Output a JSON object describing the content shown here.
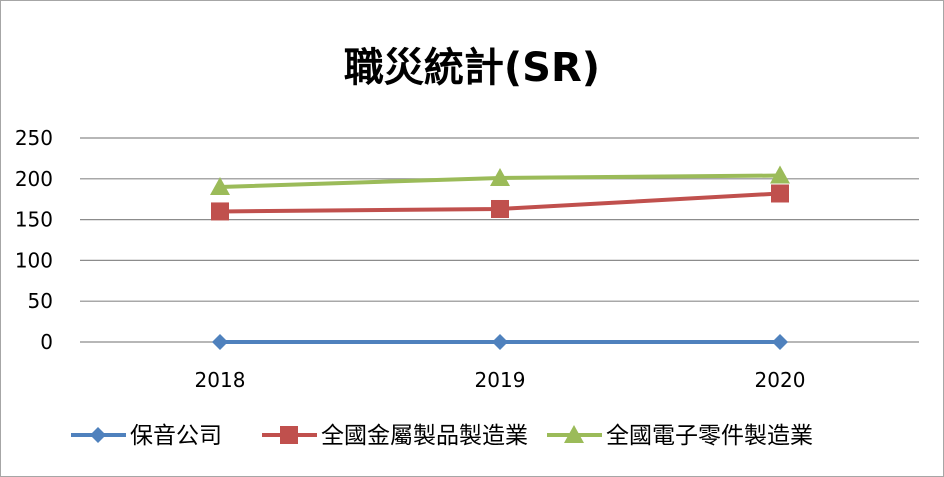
{
  "chart_data": {
    "type": "line",
    "title": "職災統計(SR)",
    "categories": [
      "2018",
      "2019",
      "2020"
    ],
    "ylim": [
      0,
      250
    ],
    "yticks": [
      "0",
      "50",
      "100",
      "150",
      "200",
      "250"
    ],
    "ytick_values": [
      0,
      50,
      100,
      150,
      200,
      250
    ],
    "grid": true,
    "legend_position": "bottom",
    "series": [
      {
        "name": "保音公司",
        "values": [
          0,
          0,
          0
        ],
        "color": "#4f81bd",
        "marker": "diamond"
      },
      {
        "name": "全國金屬製品製造業",
        "values": [
          160,
          163,
          182
        ],
        "color": "#c0504d",
        "marker": "square"
      },
      {
        "name": "全國電子零件製造業",
        "values": [
          190,
          201,
          204
        ],
        "color": "#9bbb59",
        "marker": "triangle"
      }
    ]
  }
}
